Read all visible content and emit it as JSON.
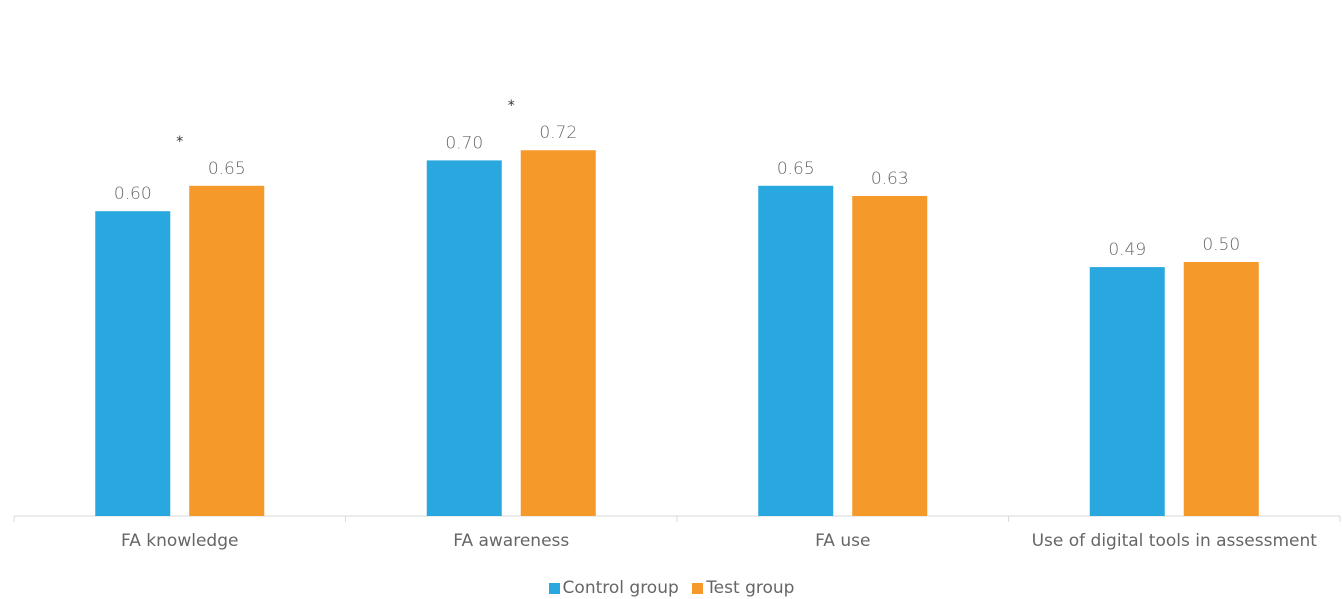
{
  "chart_data": {
    "type": "bar",
    "categories": [
      "FA knowledge",
      "FA awareness",
      "FA use",
      "Use of digital tools in assessment"
    ],
    "series": [
      {
        "name": "Control group",
        "values": [
          0.6,
          0.7,
          0.65,
          0.49
        ],
        "color": "#29a8e0"
      },
      {
        "name": "Test group",
        "values": [
          0.65,
          0.72,
          0.63,
          0.5
        ],
        "color": "#f5992a"
      }
    ],
    "data_labels": [
      [
        "0.60",
        "0.70",
        "0.65",
        "0.49"
      ],
      [
        "0.65",
        "0.72",
        "0.63",
        "0.50"
      ]
    ],
    "significance": [
      "*",
      "*",
      "",
      ""
    ],
    "ylim": [
      0,
      0.85
    ],
    "grid": false,
    "legend": "bottom"
  }
}
